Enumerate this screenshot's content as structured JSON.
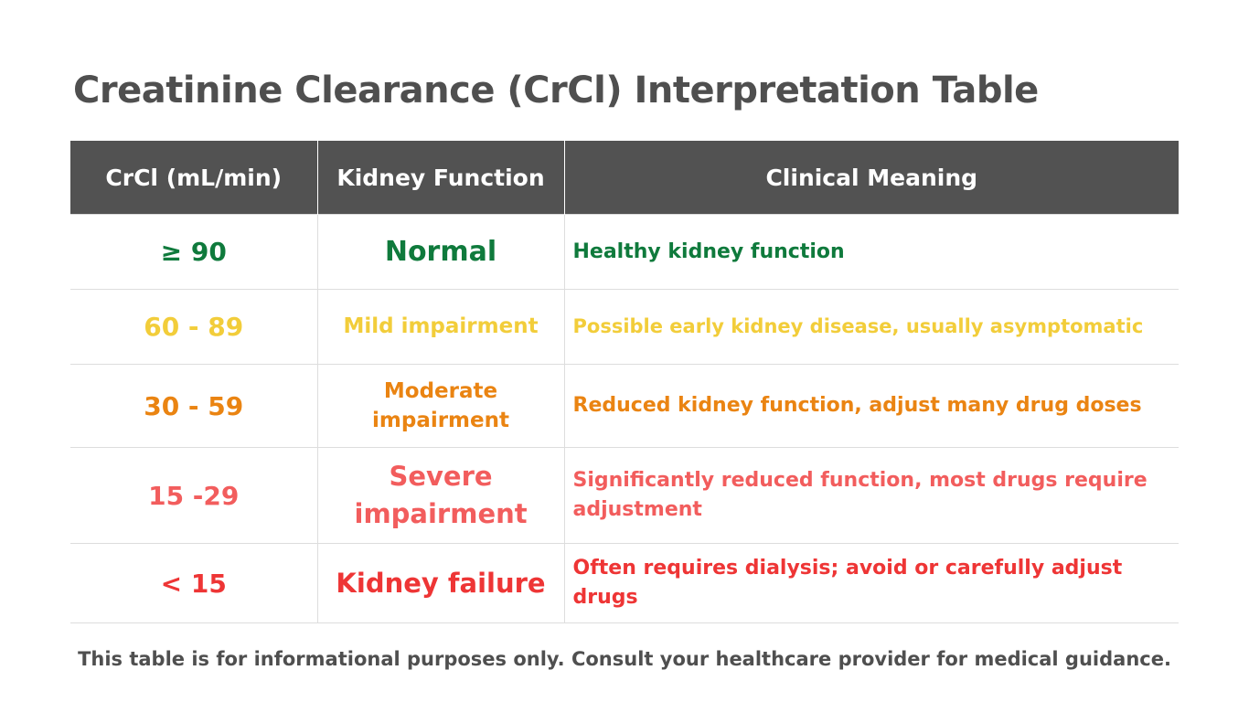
{
  "title": "Creatinine Clearance (CrCl) Interpretation Table",
  "table": {
    "headers": [
      "CrCl (mL/min)",
      "Kidney Function",
      "Clinical Meaning"
    ],
    "header_bg": "#525252",
    "rows": [
      {
        "range": "≥ 90",
        "function": "Normal",
        "meaning": "Healthy kidney function",
        "color": "#0f7a3c"
      },
      {
        "range": "60 - 89",
        "function": "Mild impairment",
        "meaning": "Possible early kidney disease, usually asymptomatic",
        "color": "#f2cd3a"
      },
      {
        "range": "30 - 59",
        "function": "Moderate impairment",
        "meaning": "Reduced kidney function, adjust many drug doses",
        "color": "#ea8412"
      },
      {
        "range": "15 -29",
        "function": "Severe impairment",
        "meaning": "Significantly reduced function, most drugs require adjustment",
        "color": "#f25d5d"
      },
      {
        "range": "< 15",
        "function": "Kidney failure",
        "meaning": "Often requires dialysis; avoid or carefully adjust drugs",
        "color": "#ee3535"
      }
    ]
  },
  "footer": "This table is for informational purposes only. Consult your healthcare provider for medical guidance."
}
